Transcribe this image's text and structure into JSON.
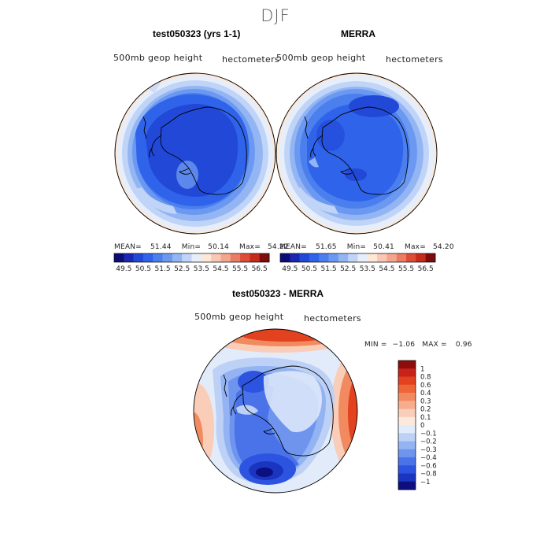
{
  "figure": {
    "season": "DJF",
    "variable": "500mb geop height",
    "units": "hectometers"
  },
  "panels": [
    {
      "title": "test050323 (yrs 1-1)",
      "mean_label": "MEAN=",
      "mean": "51.44",
      "min_label": "Min=",
      "min": "50.14",
      "max_label": "Max=",
      "max": "54.22"
    },
    {
      "title": "MERRA",
      "mean_label": "MEAN=",
      "mean": "51.65",
      "min_label": "Min=",
      "min": "50.41",
      "max_label": "Max=",
      "max": "54.20"
    },
    {
      "title": "test050323 - MERRA",
      "min_label": "MIN =",
      "min": "−1.06",
      "max_label": "MAX =",
      "max": "0.96"
    }
  ],
  "chart_data": [
    {
      "type": "heatmap",
      "title": "test050323 (yrs 1-1)",
      "projection": "south polar stereographic",
      "variable": "500mb geop height",
      "units": "hectometers",
      "stats": {
        "mean": 51.44,
        "min": 50.14,
        "max": 54.22
      },
      "colorbar": {
        "ticks": [
          "49.5",
          "50.5",
          "51.5",
          "52.5",
          "53.5",
          "54.5",
          "55.5",
          "56.5"
        ],
        "levels": [
          49.5,
          50,
          50.5,
          51,
          51.5,
          52,
          52.5,
          53,
          53.5,
          54,
          54.5,
          55,
          55.5,
          56,
          56.5
        ],
        "colors": [
          "#0c0c78",
          "#1a27b0",
          "#2248d8",
          "#2f64ea",
          "#4b7fee",
          "#6b98f0",
          "#93b5f3",
          "#c0d4f8",
          "#e6eefb",
          "#fde8d8",
          "#f9c7b4",
          "#f4a58e",
          "#ec7b64",
          "#dd4c36",
          "#c62a1a",
          "#7d0c0c"
        ]
      }
    },
    {
      "type": "heatmap",
      "title": "MERRA",
      "projection": "south polar stereographic",
      "variable": "500mb geop height",
      "units": "hectometers",
      "stats": {
        "mean": 51.65,
        "min": 50.41,
        "max": 54.2
      },
      "colorbar": {
        "ticks": [
          "49.5",
          "50.5",
          "51.5",
          "52.5",
          "53.5",
          "54.5",
          "55.5",
          "56.5"
        ],
        "levels": [
          49.5,
          50,
          50.5,
          51,
          51.5,
          52,
          52.5,
          53,
          53.5,
          54,
          54.5,
          55,
          55.5,
          56,
          56.5
        ],
        "colors": [
          "#0c0c78",
          "#1a27b0",
          "#2248d8",
          "#2f64ea",
          "#4b7fee",
          "#6b98f0",
          "#93b5f3",
          "#c0d4f8",
          "#e6eefb",
          "#fde8d8",
          "#f9c7b4",
          "#f4a58e",
          "#ec7b64",
          "#dd4c36",
          "#c62a1a",
          "#7d0c0c"
        ]
      }
    },
    {
      "type": "heatmap",
      "title": "test050323 - MERRA",
      "projection": "south polar stereographic",
      "variable": "500mb geop height",
      "units": "hectometers",
      "stats": {
        "min": -1.06,
        "max": 0.96
      },
      "colorbar": {
        "ticks": [
          "1",
          "0.8",
          "0.6",
          "0.4",
          "0.3",
          "0.2",
          "0.1",
          "0",
          "−0.1",
          "−0.2",
          "−0.3",
          "−0.4",
          "−0.6",
          "−0.8",
          "−1"
        ],
        "colors": [
          "#8e0c0c",
          "#c8231a",
          "#e2421f",
          "#ed6637",
          "#f28a60",
          "#f6ac8d",
          "#f9cdb8",
          "#fbe9de",
          "#e2ebfa",
          "#bdd1f7",
          "#93b3f2",
          "#6e94ee",
          "#4a73ea",
          "#2d54e0",
          "#1a35c0",
          "#0c0f80"
        ]
      }
    }
  ]
}
